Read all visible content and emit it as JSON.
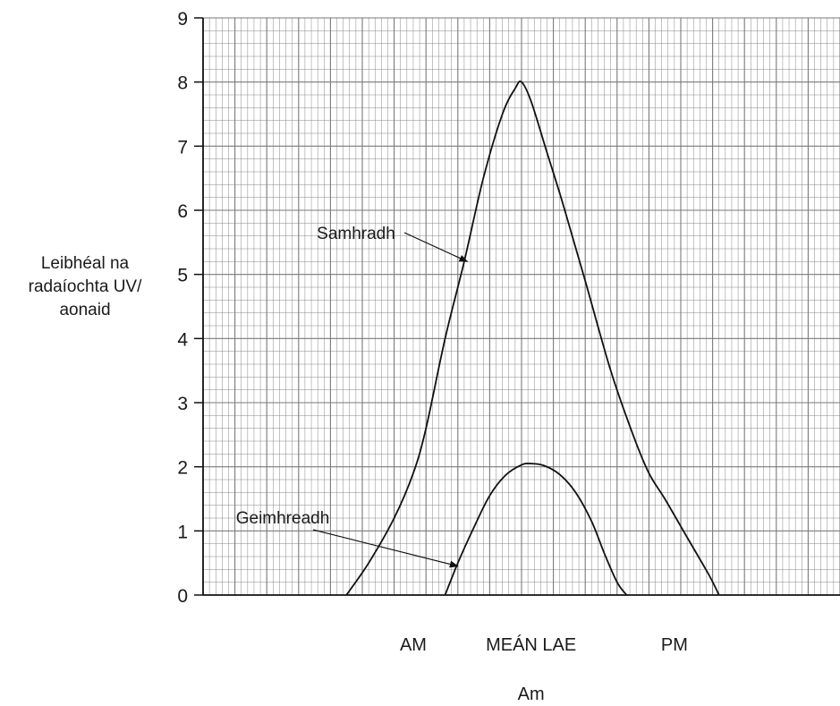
{
  "chart_data": {
    "type": "line",
    "ylabel_lines": [
      "Leibhéal na",
      "radaíochta UV/",
      "aonaid"
    ],
    "xlabel": "Am",
    "ylim": [
      0,
      9
    ],
    "yticks": [
      0,
      1,
      2,
      3,
      4,
      5,
      6,
      7,
      8,
      9
    ],
    "x_tick_labels": [
      {
        "label": "AM",
        "x": 6.6
      },
      {
        "label": "MEÁN LAE",
        "x": 10.3
      },
      {
        "label": "PM",
        "x": 14.8
      }
    ],
    "grid": true,
    "series": [
      {
        "name": "Samhradh",
        "points": [
          [
            4.5,
            0
          ],
          [
            5.2,
            0.5
          ],
          [
            6.0,
            1.2
          ],
          [
            6.6,
            1.9
          ],
          [
            7.0,
            2.6
          ],
          [
            7.6,
            4.0
          ],
          [
            8.2,
            5.2
          ],
          [
            8.8,
            6.5
          ],
          [
            9.4,
            7.5
          ],
          [
            9.8,
            7.9
          ],
          [
            10.0,
            8.0
          ],
          [
            10.3,
            7.7
          ],
          [
            10.8,
            6.9
          ],
          [
            11.3,
            6.1
          ],
          [
            12.0,
            4.9
          ],
          [
            12.8,
            3.5
          ],
          [
            13.5,
            2.5
          ],
          [
            14.0,
            1.9
          ],
          [
            14.5,
            1.5
          ],
          [
            15.2,
            0.9
          ],
          [
            15.9,
            0.3
          ],
          [
            16.2,
            0
          ]
        ]
      },
      {
        "name": "Geimhreadh",
        "points": [
          [
            7.6,
            0
          ],
          [
            8.0,
            0.5
          ],
          [
            8.5,
            1.05
          ],
          [
            9.0,
            1.55
          ],
          [
            9.5,
            1.87
          ],
          [
            10.0,
            2.03
          ],
          [
            10.3,
            2.05
          ],
          [
            10.7,
            2.02
          ],
          [
            11.2,
            1.88
          ],
          [
            11.7,
            1.6
          ],
          [
            12.2,
            1.15
          ],
          [
            12.6,
            0.65
          ],
          [
            13.0,
            0.2
          ],
          [
            13.3,
            0
          ]
        ]
      }
    ],
    "annotations": [
      {
        "text": "Samhradh",
        "series": "Samhradh",
        "x": 8.3,
        "y": 5.2
      },
      {
        "text": "Geimhreadh",
        "series": "Geimhreadh",
        "x": 8.0,
        "y": 0.45
      }
    ]
  }
}
